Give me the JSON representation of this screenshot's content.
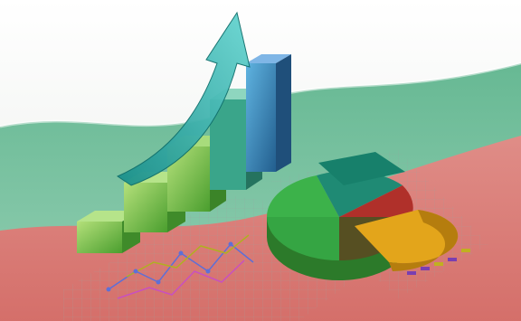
{
  "scene": {
    "subject": "business-growth-illustration",
    "flag_colors": [
      "#ffffff",
      "#2e9e6b",
      "#d9534f"
    ],
    "bar_colors": [
      "#7fc64a",
      "#6cc04a",
      "#4fb04a",
      "#3aa58a",
      "#2f7fb0"
    ],
    "pie_colors": [
      "#2e9a55",
      "#1f7f6a",
      "#e0a21a",
      "#b0302a"
    ],
    "arrow_color": "#2aa8a8"
  }
}
